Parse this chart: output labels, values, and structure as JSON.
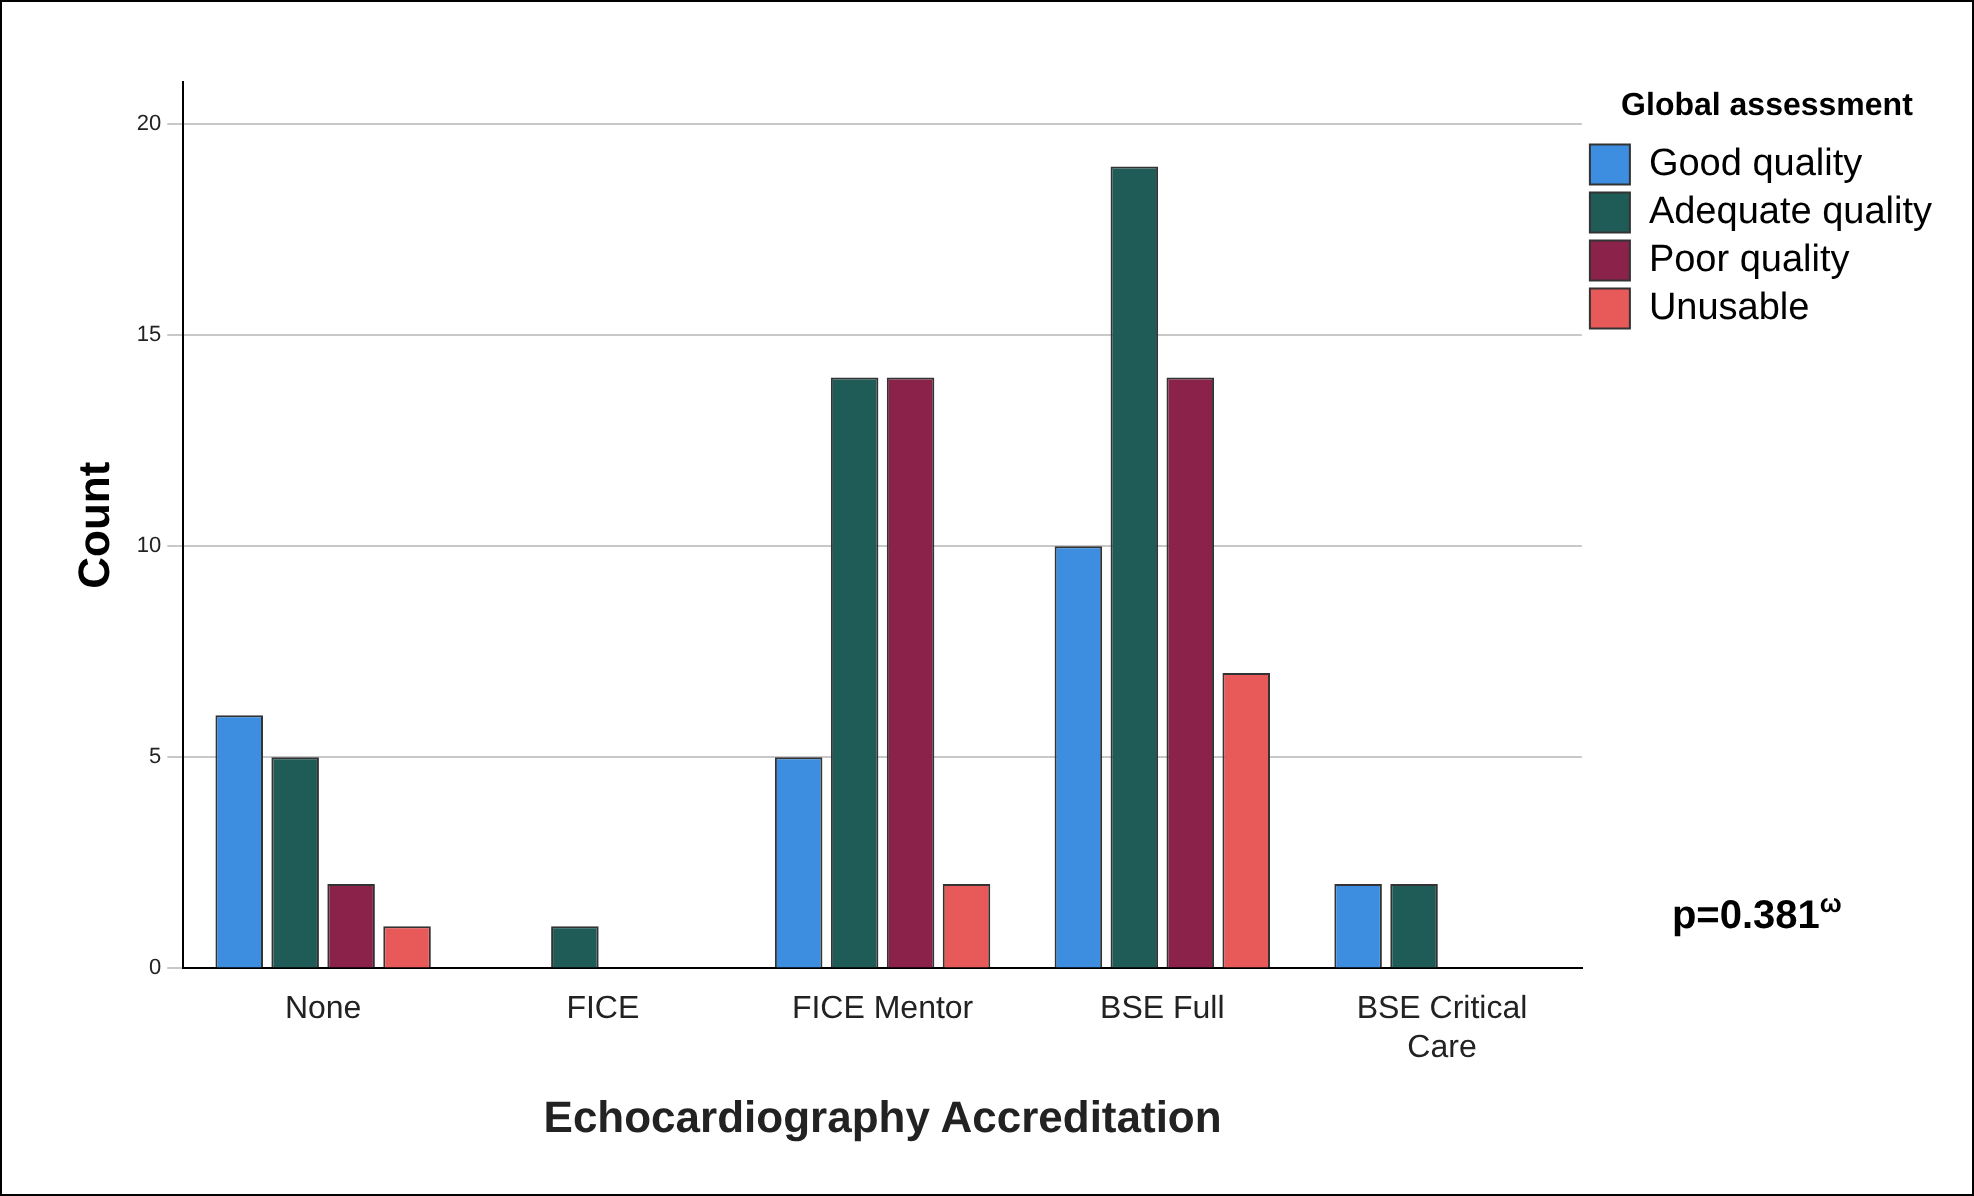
{
  "chart_data": {
    "type": "bar",
    "xlabel": "Echocardiography Accreditation",
    "ylabel": "Count",
    "legend_title": "Global assessment",
    "legend": "top right",
    "categories": [
      "None",
      "FICE",
      "FICE Mentor",
      "BSE Full",
      "BSE Critical Care"
    ],
    "series": [
      {
        "name": "Good quality",
        "color": "#3d8ee0",
        "values": [
          6,
          0,
          5,
          10,
          2
        ]
      },
      {
        "name": "Adequate quality",
        "color": "#1f5c58",
        "values": [
          5,
          1,
          14,
          19,
          2
        ]
      },
      {
        "name": "Poor quality",
        "color": "#8a2249",
        "values": [
          2,
          0,
          14,
          14,
          0
        ]
      },
      {
        "name": "Unusable",
        "color": "#e8595a",
        "values": [
          1,
          0,
          2,
          7,
          0
        ]
      }
    ],
    "ylim": [
      0,
      21
    ],
    "yticks": [
      0,
      5,
      10,
      15,
      20
    ],
    "grid": "y",
    "annotations": [
      "p=0.381$^{ω}$"
    ]
  }
}
